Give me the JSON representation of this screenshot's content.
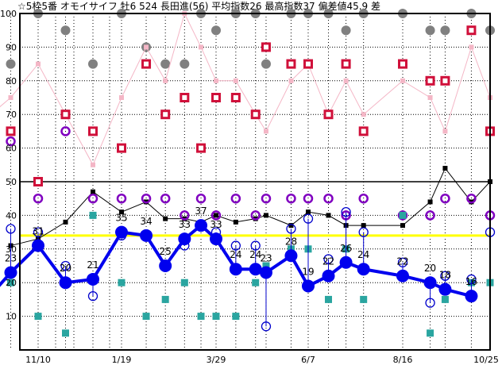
{
  "chart_data": {
    "type": "line",
    "title": "☆5枠5番 オモイサイフ 牡6 524 長田進(56) 平均指数26 最高指数37 偏差値45.9 差",
    "ylim": [
      0,
      100
    ],
    "y_ticks": [
      "10",
      "20",
      "30",
      "40",
      "50",
      "60",
      "70",
      "80",
      "90",
      "100"
    ],
    "x_ticks": [
      {
        "label": "11/10",
        "day": 0
      },
      {
        "label": "1/19",
        "day": 70
      },
      {
        "label": "3/29",
        "day": 139
      },
      {
        "label": "6/7",
        "day": 209
      },
      {
        "label": "8/16",
        "day": 279
      },
      {
        "label": "10/25",
        "day": 349
      }
    ],
    "reference_line": 34,
    "colors": {
      "index": "#0000ee",
      "index_sub": "#0000cc",
      "black": "#000000",
      "gray": "#808080",
      "pink": "#f4b6c6",
      "red": "#d0103a",
      "purple": "#8000c0",
      "teal": "#2aa5a0",
      "yellow": "#ffff00"
    },
    "lead_in": {
      "day": -33,
      "index": 19
    },
    "races": [
      {
        "day": -23,
        "index": 23,
        "label": "23",
        "circle": 36,
        "black": 31,
        "gray": 85,
        "pink": 75,
        "red": 65,
        "purple": 62,
        "teal": 20
      },
      {
        "day": 0,
        "index": 31,
        "label": "31",
        "circle": 35,
        "black": 33,
        "gray": 100,
        "pink": 85,
        "red": 50,
        "purple": 45,
        "teal": 10
      },
      {
        "day": 23,
        "index": 20,
        "label": "20",
        "circle": 25,
        "black": 38,
        "gray": 95,
        "pink": 70,
        "red": 70,
        "purple": 65,
        "teal": 5
      },
      {
        "day": 46,
        "index": 21,
        "label": "21",
        "circle": 16,
        "black": 47,
        "gray": 85,
        "pink": 55,
        "red": 65,
        "purple": 45,
        "teal": 40
      },
      {
        "day": 70,
        "index": 35,
        "label": "35",
        "circle": 34,
        "black": 41,
        "gray": 100,
        "pink": 75,
        "red": 60,
        "purple": 45,
        "teal": 20
      },
      {
        "day": 88,
        "index": 34,
        "label": "34",
        "circle": null,
        "black": 44,
        "gray": 90,
        "pink": 90,
        "red": 85,
        "purple": 45,
        "teal": 10
      },
      {
        "day": 102,
        "index": 25,
        "label": "25",
        "circle": null,
        "black": 39,
        "gray": 85,
        "pink": 80,
        "red": 70,
        "purple": 45,
        "teal": 15
      },
      {
        "day": 116,
        "index": 33,
        "label": "33",
        "circle": 31,
        "black": 39,
        "gray": 85,
        "pink": 100,
        "red": 75,
        "purple": 40,
        "teal": 20
      },
      {
        "day": 128,
        "index": 37,
        "label": "37",
        "circle": null,
        "black": 38,
        "gray": 100,
        "pink": 90,
        "red": 60,
        "purple": 45,
        "teal": 10
      },
      {
        "day": 139,
        "index": 33,
        "label": "33",
        "circle": 35,
        "black": 40,
        "gray": 95,
        "pink": 80,
        "red": 75,
        "purple": 40,
        "teal": 10
      },
      {
        "day": 154,
        "index": 24,
        "label": "24",
        "circle": 31,
        "black": 38,
        "gray": 100,
        "pink": 80,
        "red": 75,
        "purple": 45,
        "teal": 10
      },
      {
        "day": 169,
        "index": 24,
        "label": "24",
        "circle": 31,
        "black": 39,
        "gray": 100,
        "pink": 70,
        "red": 70,
        "purple": 40,
        "teal": 20
      },
      {
        "day": 177,
        "index": 23,
        "label": "23",
        "circle": 7,
        "black": 40,
        "gray": 85,
        "pink": 65,
        "red": 90,
        "purple": 45,
        "teal": 25
      },
      {
        "day": 196,
        "index": 28,
        "label": "28",
        "circle": 36,
        "black": 37,
        "gray": 100,
        "pink": 80,
        "red": 85,
        "purple": 45,
        "teal": 30
      },
      {
        "day": 209,
        "index": 19,
        "label": "19",
        "circle": 39,
        "black": 41,
        "gray": 100,
        "pink": 85,
        "red": 85,
        "purple": 45,
        "teal": 30
      },
      {
        "day": 224,
        "index": 22,
        "label": "22",
        "circle": 27,
        "black": 40,
        "gray": 100,
        "pink": 70,
        "red": 70,
        "purple": 45,
        "teal": 15
      },
      {
        "day": 237,
        "index": 26,
        "label": "26",
        "circle": 41,
        "black": 37,
        "gray": 95,
        "pink": 80,
        "red": 85,
        "purple": 40,
        "teal": 30
      },
      {
        "day": 250,
        "index": 24,
        "label": "24",
        "circle": 35,
        "black": 37,
        "gray": 100,
        "pink": 70,
        "red": 65,
        "purple": 45,
        "teal": 15
      },
      {
        "day": 279,
        "index": 22,
        "label": "22",
        "circle": 26,
        "black": 37,
        "gray": 100,
        "pink": 80,
        "red": 85,
        "purple": 40,
        "teal": 40
      },
      {
        "day": 301,
        "index": 20,
        "label": "20",
        "circle": 14,
        "black": 44,
        "gray": 95,
        "pink": 75,
        "red": 80,
        "purple": 40,
        "teal": 5
      },
      {
        "day": 313,
        "index": 18,
        "label": "18",
        "circle": 22,
        "black": 54,
        "gray": 95,
        "pink": 65,
        "red": 80,
        "purple": 45,
        "teal": 15
      },
      {
        "day": 334,
        "index": 16,
        "label": "16",
        "circle": 21,
        "black": 44,
        "gray": 100,
        "pink": 90,
        "red": 95,
        "purple": 45,
        "teal": 20
      },
      {
        "day": 349,
        "index": null,
        "label": null,
        "circle": 35,
        "black": 50,
        "gray": 95,
        "pink": 75,
        "red": 65,
        "purple": 40,
        "teal": 20
      }
    ]
  }
}
